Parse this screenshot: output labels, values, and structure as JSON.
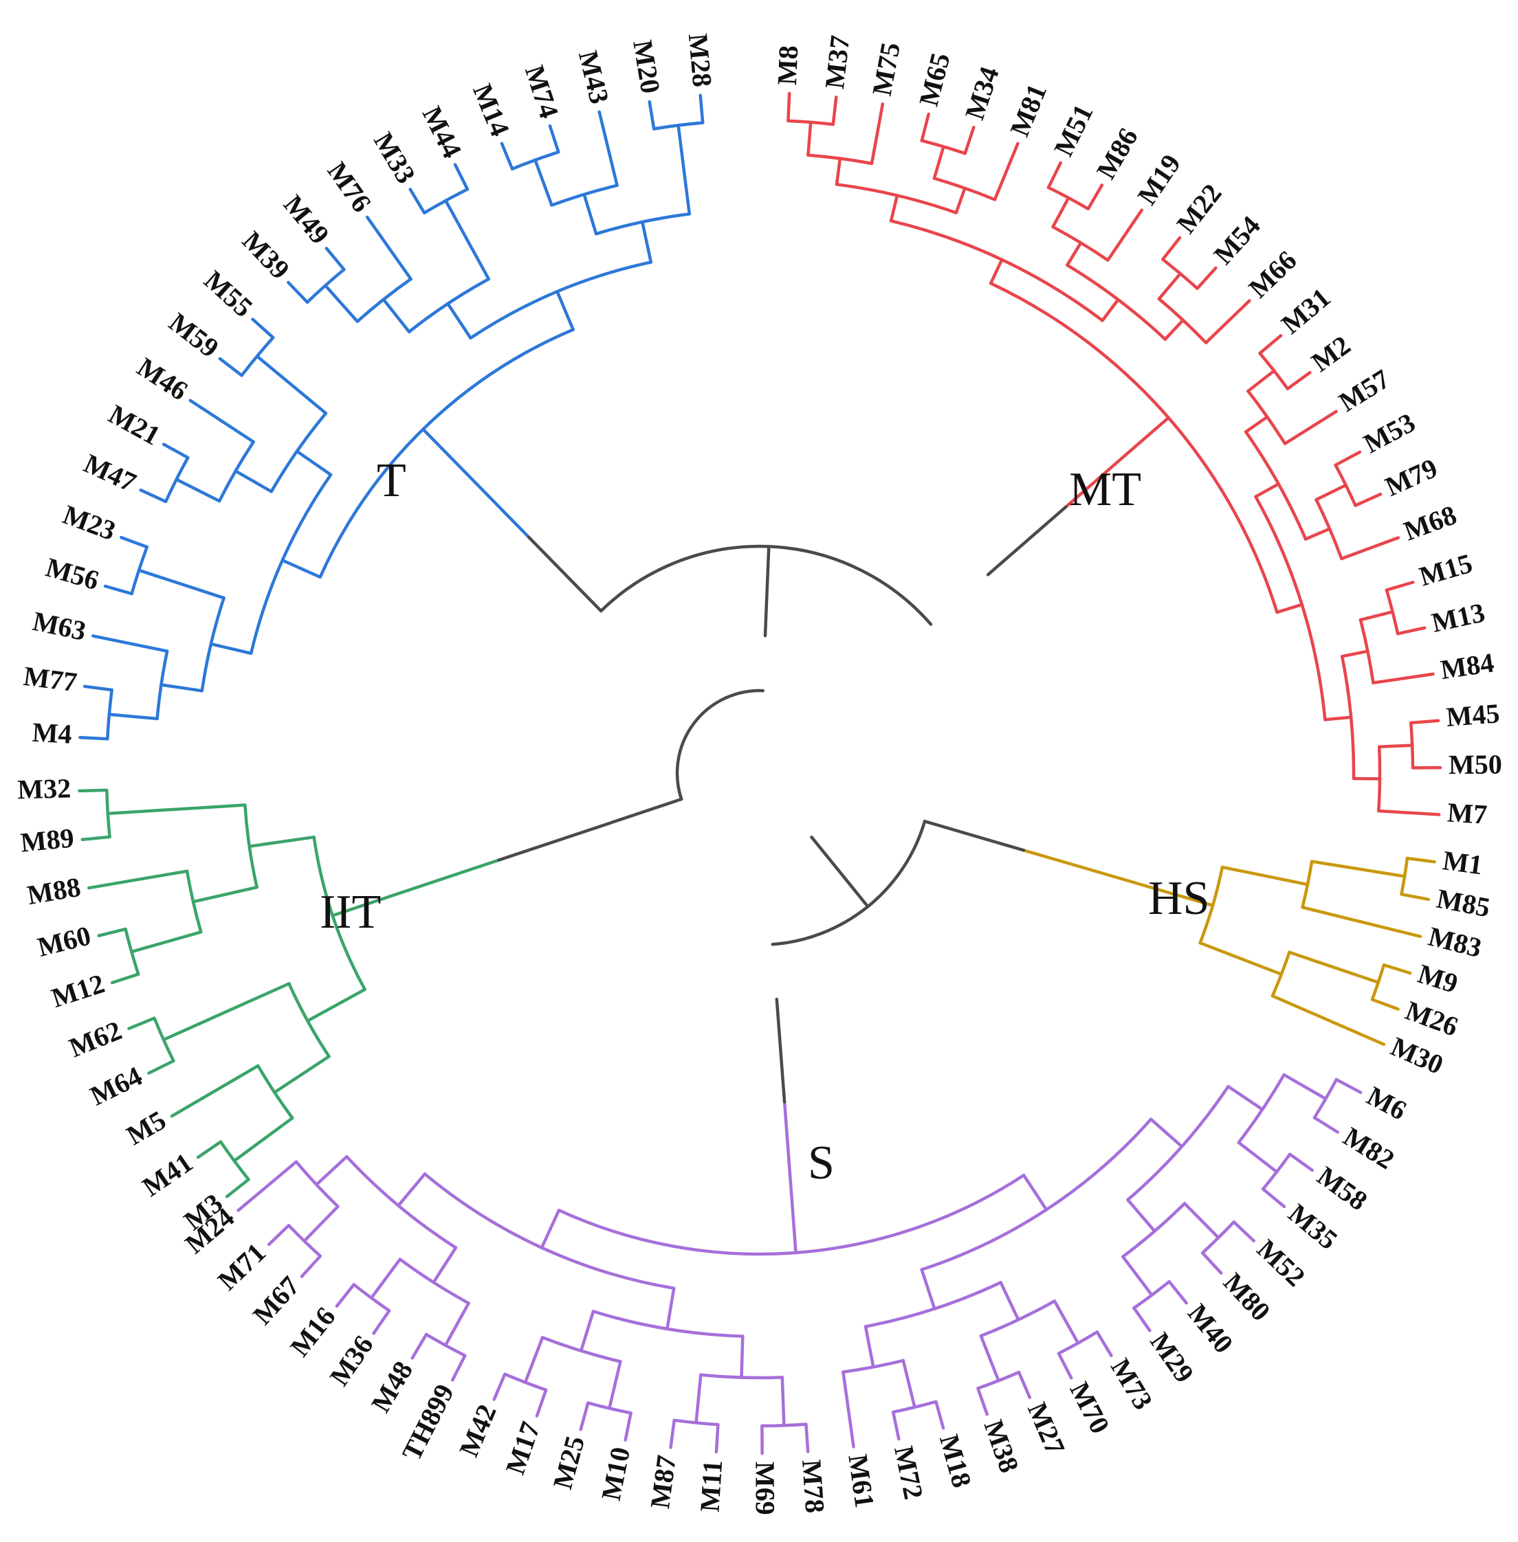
{
  "diagram": {
    "type": "circular-dendrogram",
    "trunk_color": "#4a4a4a",
    "clades": [
      {
        "name": "MT",
        "color": "#e8454b",
        "leaves": [
          "M8",
          "M37",
          "M75",
          "M65",
          "M34",
          "M81",
          "M51",
          "M86",
          "M19",
          "M22",
          "M54",
          "M66",
          "M31",
          "M2",
          "M57",
          "M53",
          "M79",
          "M68",
          "M15",
          "M13",
          "M84",
          "M45",
          "M50",
          "M7"
        ]
      },
      {
        "name": "HS",
        "color": "#c9980e",
        "leaves": [
          "M1",
          "M85",
          "M83",
          "M9",
          "M26",
          "M30"
        ]
      },
      {
        "name": "S",
        "color": "#a66fda",
        "leaves": [
          "M6",
          "M82",
          "M58",
          "M35",
          "M52",
          "M80",
          "M40",
          "M29",
          "M73",
          "M70",
          "M27",
          "M38",
          "M18",
          "M72",
          "M61",
          "M78",
          "M69",
          "M11",
          "M87",
          "M10",
          "M25",
          "M17",
          "M42",
          "TH899",
          "M48",
          "M36",
          "M16",
          "M67",
          "M71",
          "M24"
        ]
      },
      {
        "name": "IIT",
        "color": "#3aa46a",
        "leaves": [
          "M3",
          "M41",
          "M5",
          "M64",
          "M62",
          "M12",
          "M60",
          "M88",
          "M89",
          "M32"
        ]
      },
      {
        "name": "T",
        "color": "#2c78d8",
        "leaves": [
          "M4",
          "M77",
          "M63",
          "M56",
          "M23",
          "M47",
          "M21",
          "M46",
          "M59",
          "M55",
          "M39",
          "M49",
          "M76",
          "M33",
          "M44",
          "M14",
          "M74",
          "M43",
          "M20",
          "M28"
        ]
      }
    ]
  }
}
